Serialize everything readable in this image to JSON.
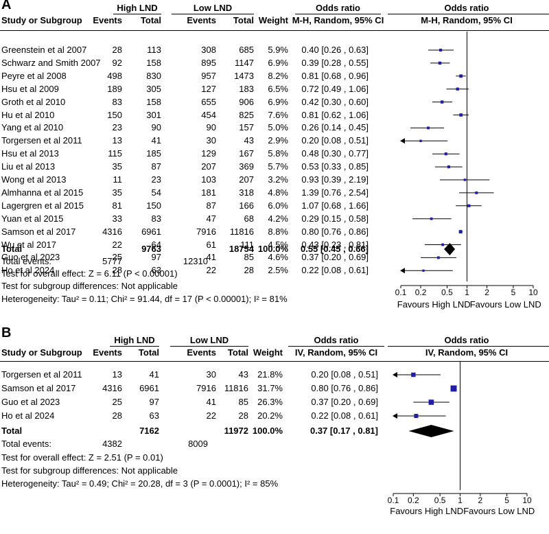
{
  "chart_data": [
    {
      "type": "forest",
      "panel_label": "A",
      "title": "",
      "header": {
        "study": "Study or Subgroup",
        "group1": "High LND",
        "group2": "Low LND",
        "events": "Events",
        "total": "Total",
        "weight": "Weight",
        "or_title": "Odds ratio",
        "or_method": "M-H, Random, 95% CI",
        "plot_title": "Odds ratio",
        "plot_method": "M-H, Random, 95% CI"
      },
      "studies": [
        {
          "name": "Greenstein et al 2007",
          "e1": "28",
          "t1": "113",
          "e2": "308",
          "t2": "685",
          "weight": "5.9%",
          "or_text": "0.40 [0.26 , 0.63]",
          "or": 0.4,
          "lo": 0.26,
          "hi": 0.63
        },
        {
          "name": "Schwarz and Smith 2007",
          "e1": "92",
          "t1": "158",
          "e2": "895",
          "t2": "1147",
          "weight": "6.9%",
          "or_text": "0.39 [0.28 , 0.55]",
          "or": 0.39,
          "lo": 0.28,
          "hi": 0.55
        },
        {
          "name": "Peyre et al 2008",
          "e1": "498",
          "t1": "830",
          "e2": "957",
          "t2": "1473",
          "weight": "8.2%",
          "or_text": "0.81 [0.68 , 0.96]",
          "or": 0.81,
          "lo": 0.68,
          "hi": 0.96
        },
        {
          "name": "Hsu et al 2009",
          "e1": "189",
          "t1": "305",
          "e2": "127",
          "t2": "183",
          "weight": "6.5%",
          "or_text": "0.72 [0.49 , 1.06]",
          "or": 0.72,
          "lo": 0.49,
          "hi": 1.06
        },
        {
          "name": "Groth et al 2010",
          "e1": "83",
          "t1": "158",
          "e2": "655",
          "t2": "906",
          "weight": "6.9%",
          "or_text": "0.42 [0.30 , 0.60]",
          "or": 0.42,
          "lo": 0.3,
          "hi": 0.6
        },
        {
          "name": "Hu et al 2010",
          "e1": "150",
          "t1": "301",
          "e2": "454",
          "t2": "825",
          "weight": "7.6%",
          "or_text": "0.81 [0.62 , 1.06]",
          "or": 0.81,
          "lo": 0.62,
          "hi": 1.06
        },
        {
          "name": "Yang et al 2010",
          "e1": "23",
          "t1": "90",
          "e2": "90",
          "t2": "157",
          "weight": "5.0%",
          "or_text": "0.26 [0.14 , 0.45]",
          "or": 0.26,
          "lo": 0.14,
          "hi": 0.45
        },
        {
          "name": "Torgersen et al 2011",
          "e1": "13",
          "t1": "41",
          "e2": "30",
          "t2": "43",
          "weight": "2.9%",
          "or_text": "0.20 [0.08 , 0.51]",
          "or": 0.2,
          "lo": 0.08,
          "hi": 0.51
        },
        {
          "name": "Hsu et al 2013",
          "e1": "115",
          "t1": "185",
          "e2": "129",
          "t2": "167",
          "weight": "5.8%",
          "or_text": "0.48 [0.30 , 0.77]",
          "or": 0.48,
          "lo": 0.3,
          "hi": 0.77
        },
        {
          "name": "Liu et al 2013",
          "e1": "35",
          "t1": "87",
          "e2": "207",
          "t2": "369",
          "weight": "5.7%",
          "or_text": "0.53 [0.33 , 0.85]",
          "or": 0.53,
          "lo": 0.33,
          "hi": 0.85
        },
        {
          "name": "Wong et al 2013",
          "e1": "11",
          "t1": "23",
          "e2": "103",
          "t2": "207",
          "weight": "3.2%",
          "or_text": "0.93 [0.39 , 2.19]",
          "or": 0.93,
          "lo": 0.39,
          "hi": 2.19
        },
        {
          "name": "Almhanna et al 2015",
          "e1": "35",
          "t1": "54",
          "e2": "181",
          "t2": "318",
          "weight": "4.8%",
          "or_text": "1.39 [0.76 , 2.54]",
          "or": 1.39,
          "lo": 0.76,
          "hi": 2.54
        },
        {
          "name": "Lagergren et al 2015",
          "e1": "81",
          "t1": "150",
          "e2": "87",
          "t2": "166",
          "weight": "6.0%",
          "or_text": "1.07 [0.68 , 1.66]",
          "or": 1.07,
          "lo": 0.68,
          "hi": 1.66
        },
        {
          "name": "Yuan et al 2015",
          "e1": "33",
          "t1": "83",
          "e2": "47",
          "t2": "68",
          "weight": "4.2%",
          "or_text": "0.29 [0.15 , 0.58]",
          "or": 0.29,
          "lo": 0.15,
          "hi": 0.58
        },
        {
          "name": "Samson et al 2017",
          "e1": "4316",
          "t1": "6961",
          "e2": "7916",
          "t2": "11816",
          "weight": "8.8%",
          "or_text": "0.80 [0.76 , 0.86]",
          "or": 0.8,
          "lo": 0.76,
          "hi": 0.86
        },
        {
          "name": "Wu et al 2017",
          "e1": "22",
          "t1": "64",
          "e2": "61",
          "t2": "111",
          "weight": "4.5%",
          "or_text": "0.43 [0.23 , 0.81]",
          "or": 0.43,
          "lo": 0.23,
          "hi": 0.81
        },
        {
          "name": "Guo et al 2023",
          "e1": "25",
          "t1": "97",
          "e2": "41",
          "t2": "85",
          "weight": "4.6%",
          "or_text": "0.37 [0.20 , 0.69]",
          "or": 0.37,
          "lo": 0.2,
          "hi": 0.69
        },
        {
          "name": "Ho et al 2024",
          "e1": "28",
          "t1": "63",
          "e2": "22",
          "t2": "28",
          "weight": "2.5%",
          "or_text": "0.22 [0.08 , 0.61]",
          "or": 0.22,
          "lo": 0.08,
          "hi": 0.61
        }
      ],
      "total": {
        "label": "Total",
        "t1": "9763",
        "t2": "18754",
        "weight": "100.0%",
        "or_text": "0.55 [0.45 , 0.66]",
        "or": 0.55,
        "lo": 0.45,
        "hi": 0.66
      },
      "total_events": {
        "label": "Total events:",
        "e1": "5777",
        "e2": "12310"
      },
      "footnotes": [
        "Test for overall effect: Z = 6.11 (P < 0.00001)",
        "Test for subgroup differences: Not applicable",
        "Heterogeneity: Tau² = 0.11; Chi² = 91.44, df = 17 (P < 0.00001); I² = 81%"
      ],
      "x_scale": "log",
      "xlim": [
        0.1,
        10
      ],
      "x_ticks": [
        0.1,
        0.2,
        0.5,
        1,
        2,
        5,
        10
      ],
      "x_tick_labels": [
        "0.1",
        "0.2",
        "0.5",
        "1",
        "2",
        "5",
        "10"
      ],
      "favours_left": "Favours High LND",
      "favours_right": "Favours Low LND",
      "marker_color": "#1f1fa8"
    },
    {
      "type": "forest",
      "panel_label": "B",
      "title": "",
      "header": {
        "study": "Study or Subgroup",
        "group1": "High LND",
        "group2": "Low LND",
        "events": "Events",
        "total": "Total",
        "weight": "Weight",
        "or_title": "Odds ratio",
        "or_method": "IV, Random, 95% CI",
        "plot_title": "Odds ratio",
        "plot_method": "IV, Random, 95% CI"
      },
      "studies": [
        {
          "name": "Torgersen et al 2011",
          "e1": "13",
          "t1": "41",
          "e2": "30",
          "t2": "43",
          "weight": "21.8%",
          "or_text": "0.20 [0.08 , 0.51]",
          "or": 0.2,
          "lo": 0.08,
          "hi": 0.51
        },
        {
          "name": "Samson et al 2017",
          "e1": "4316",
          "t1": "6961",
          "e2": "7916",
          "t2": "11816",
          "weight": "31.7%",
          "or_text": "0.80 [0.76 , 0.86]",
          "or": 0.8,
          "lo": 0.76,
          "hi": 0.86
        },
        {
          "name": "Guo et al 2023",
          "e1": "25",
          "t1": "97",
          "e2": "41",
          "t2": "85",
          "weight": "26.3%",
          "or_text": "0.37 [0.20 , 0.69]",
          "or": 0.37,
          "lo": 0.2,
          "hi": 0.69
        },
        {
          "name": "Ho et al 2024",
          "e1": "28",
          "t1": "63",
          "e2": "22",
          "t2": "28",
          "weight": "20.2%",
          "or_text": "0.22 [0.08 , 0.61]",
          "or": 0.22,
          "lo": 0.08,
          "hi": 0.61
        }
      ],
      "total": {
        "label": "Total",
        "t1": "7162",
        "t2": "11972",
        "weight": "100.0%",
        "or_text": "0.37 [0.17 , 0.81]",
        "or": 0.37,
        "lo": 0.17,
        "hi": 0.81
      },
      "total_events": {
        "label": "Total events:",
        "e1": "4382",
        "e2": "8009"
      },
      "footnotes": [
        "Test for overall effect: Z = 2.51 (P = 0.01)",
        "Test for subgroup differences: Not applicable",
        "Heterogeneity: Tau² = 0.49; Chi² = 20.28, df = 3 (P = 0.0001); I² = 85%"
      ],
      "x_scale": "log",
      "xlim": [
        0.1,
        10
      ],
      "x_ticks": [
        0.1,
        0.2,
        0.5,
        1,
        2,
        5,
        10
      ],
      "x_tick_labels": [
        "0.1",
        "0.2",
        "0.5",
        "1",
        "2",
        "5",
        "10"
      ],
      "favours_left": "Favours High LND",
      "favours_right": "Favours Low LND",
      "marker_color": "#1f1fa8"
    }
  ]
}
